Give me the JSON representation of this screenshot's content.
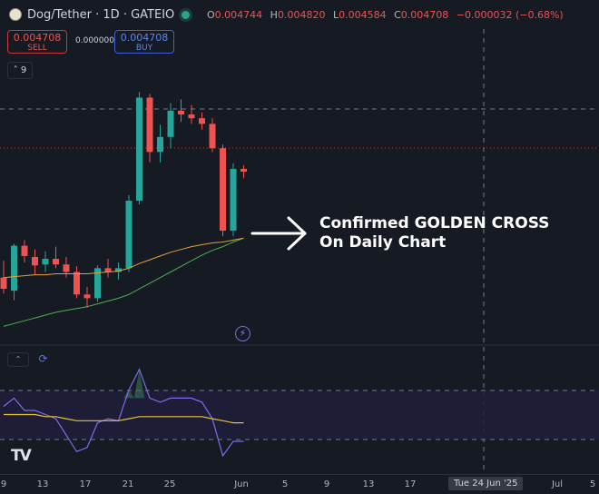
{
  "header": {
    "symbol": "Dog/Tether · 1D · GATEIO",
    "ohlc": {
      "o_label": "O",
      "o": "0.004744",
      "h_label": "H",
      "h": "0.004820",
      "l_label": "L",
      "l": "0.004584",
      "c_label": "C",
      "c": "0.004708",
      "change": "−0.000032 (−0.68%)"
    }
  },
  "trade": {
    "sell_price": "0.004708",
    "sell_label": "SELL",
    "spread": "0.000000",
    "buy_price": "0.004708",
    "buy_label": "BUY"
  },
  "indicators_toggle": {
    "chevron": "˄",
    "count": "9"
  },
  "annotation": {
    "line1": "Confirmed GOLDEN CROSS",
    "line2": "On Daily Chart",
    "arrow_icon": "right-arrow"
  },
  "icons": {
    "bolt": "⚡",
    "refresh": "⟳",
    "chevron": "⌃"
  },
  "x_axis": {
    "ticks": [
      "9",
      "13",
      "17",
      "21",
      "25",
      "Jun",
      "5",
      "9",
      "13",
      "17",
      "Jul",
      "5"
    ],
    "crosshair_label": "Tue 24 Jun '25"
  },
  "logo": "TV",
  "colors": {
    "background": "#161a23",
    "up": "#26a69a",
    "down": "#ef5350",
    "ma_fast": "#e3a13b",
    "ma_slow": "#4caf50",
    "oscillator": "#7e6ee8",
    "signal": "#e3c33b"
  },
  "chart_data": [
    {
      "type": "candlestick",
      "title": "Dog/Tether · 1D · GATEIO",
      "candles": [
        {
          "o": 0.00262,
          "h": 0.0028,
          "l": 0.00245,
          "c": 0.0025
        },
        {
          "o": 0.00248,
          "h": 0.00298,
          "l": 0.00238,
          "c": 0.00296
        },
        {
          "o": 0.00296,
          "h": 0.00302,
          "l": 0.00278,
          "c": 0.00285
        },
        {
          "o": 0.00284,
          "h": 0.00292,
          "l": 0.00265,
          "c": 0.00275
        },
        {
          "o": 0.00276,
          "h": 0.0029,
          "l": 0.00268,
          "c": 0.00282
        },
        {
          "o": 0.00282,
          "h": 0.00295,
          "l": 0.00272,
          "c": 0.00276
        },
        {
          "o": 0.00276,
          "h": 0.00284,
          "l": 0.00262,
          "c": 0.00268
        },
        {
          "o": 0.00268,
          "h": 0.00274,
          "l": 0.0024,
          "c": 0.00244
        },
        {
          "o": 0.00244,
          "h": 0.00252,
          "l": 0.0023,
          "c": 0.0024
        },
        {
          "o": 0.0024,
          "h": 0.00275,
          "l": 0.00236,
          "c": 0.00272
        },
        {
          "o": 0.00272,
          "h": 0.00282,
          "l": 0.00262,
          "c": 0.00268
        },
        {
          "o": 0.00268,
          "h": 0.00278,
          "l": 0.0026,
          "c": 0.00272
        },
        {
          "o": 0.00272,
          "h": 0.0035,
          "l": 0.00268,
          "c": 0.00344
        },
        {
          "o": 0.00344,
          "h": 0.0046,
          "l": 0.0034,
          "c": 0.00454
        },
        {
          "o": 0.00454,
          "h": 0.00458,
          "l": 0.00385,
          "c": 0.00396
        },
        {
          "o": 0.00396,
          "h": 0.00425,
          "l": 0.00385,
          "c": 0.00412
        },
        {
          "o": 0.00412,
          "h": 0.00448,
          "l": 0.004,
          "c": 0.0044
        },
        {
          "o": 0.0044,
          "h": 0.00452,
          "l": 0.00428,
          "c": 0.00436
        },
        {
          "o": 0.00436,
          "h": 0.00446,
          "l": 0.00426,
          "c": 0.00432
        },
        {
          "o": 0.00432,
          "h": 0.00438,
          "l": 0.0042,
          "c": 0.00426
        },
        {
          "o": 0.00426,
          "h": 0.00432,
          "l": 0.00396,
          "c": 0.004
        },
        {
          "o": 0.004,
          "h": 0.00404,
          "l": 0.00306,
          "c": 0.00312
        },
        {
          "o": 0.00312,
          "h": 0.00384,
          "l": 0.00306,
          "c": 0.00378
        },
        {
          "o": 0.00378,
          "h": 0.00382,
          "l": 0.00368,
          "c": 0.00375
        }
      ],
      "ma_fast": [
        0.00262,
        0.00263,
        0.00264,
        0.00265,
        0.00265,
        0.00266,
        0.00266,
        0.00266,
        0.00266,
        0.00267,
        0.00268,
        0.00269,
        0.00272,
        0.00277,
        0.00281,
        0.00285,
        0.00289,
        0.00292,
        0.00295,
        0.00297,
        0.00299,
        0.003,
        0.00302,
        0.00304
      ],
      "ma_slow": [
        0.0021,
        0.00213,
        0.00216,
        0.00219,
        0.00222,
        0.00225,
        0.00227,
        0.00229,
        0.00231,
        0.00234,
        0.00237,
        0.0024,
        0.00244,
        0.0025,
        0.00256,
        0.00262,
        0.00268,
        0.00274,
        0.0028,
        0.00286,
        0.00291,
        0.00295,
        0.003,
        0.00304
      ],
      "price_ylim": [
        0.0019,
        0.005
      ]
    },
    {
      "type": "line",
      "series": [
        {
          "values": [
            62,
            66,
            60,
            60,
            58,
            56,
            48,
            40,
            42,
            54,
            56,
            55,
            70,
            80,
            66,
            64,
            66,
            66,
            66,
            64,
            56,
            38,
            45,
            45
          ]
        },
        {
          "values": [
            58,
            58,
            58,
            58,
            57,
            57,
            56,
            55,
            55,
            55,
            55,
            55,
            56,
            57,
            57,
            57,
            57,
            57,
            57,
            57,
            56,
            55,
            54,
            54
          ]
        }
      ],
      "ylim": [
        30,
        90
      ]
    }
  ]
}
